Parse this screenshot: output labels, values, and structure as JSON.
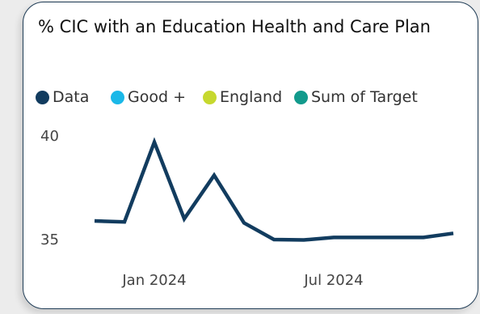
{
  "chart_data": {
    "type": "line",
    "title": "% CIC with an Education Health and Care Plan",
    "legend": [
      {
        "name": "Data",
        "color": "#123c5f"
      },
      {
        "name": "Good +",
        "color": "#1ab8e8"
      },
      {
        "name": "England",
        "color": "#c6d82e"
      },
      {
        "name": "Sum of Target",
        "color": "#129a8c"
      }
    ],
    "legend_position": "top-left",
    "x_tick_labels": [
      "Jan 2024",
      "Jul 2024"
    ],
    "y_tick_labels": [
      "40",
      "35"
    ],
    "ylim": [
      35,
      40
    ],
    "series": [
      {
        "name": "Data",
        "color": "#123c5f",
        "x": [
          "2023-11",
          "2023-12",
          "2024-01",
          "2024-02",
          "2024-03",
          "2024-04",
          "2024-05",
          "2024-06",
          "2024-07",
          "2024-08",
          "2024-09",
          "2024-10",
          "2024-11"
        ],
        "values": [
          35.9,
          35.85,
          39.7,
          36.0,
          38.1,
          35.8,
          35.0,
          34.98,
          35.1,
          35.1,
          35.1,
          35.1,
          35.3
        ]
      }
    ],
    "grid": false
  }
}
